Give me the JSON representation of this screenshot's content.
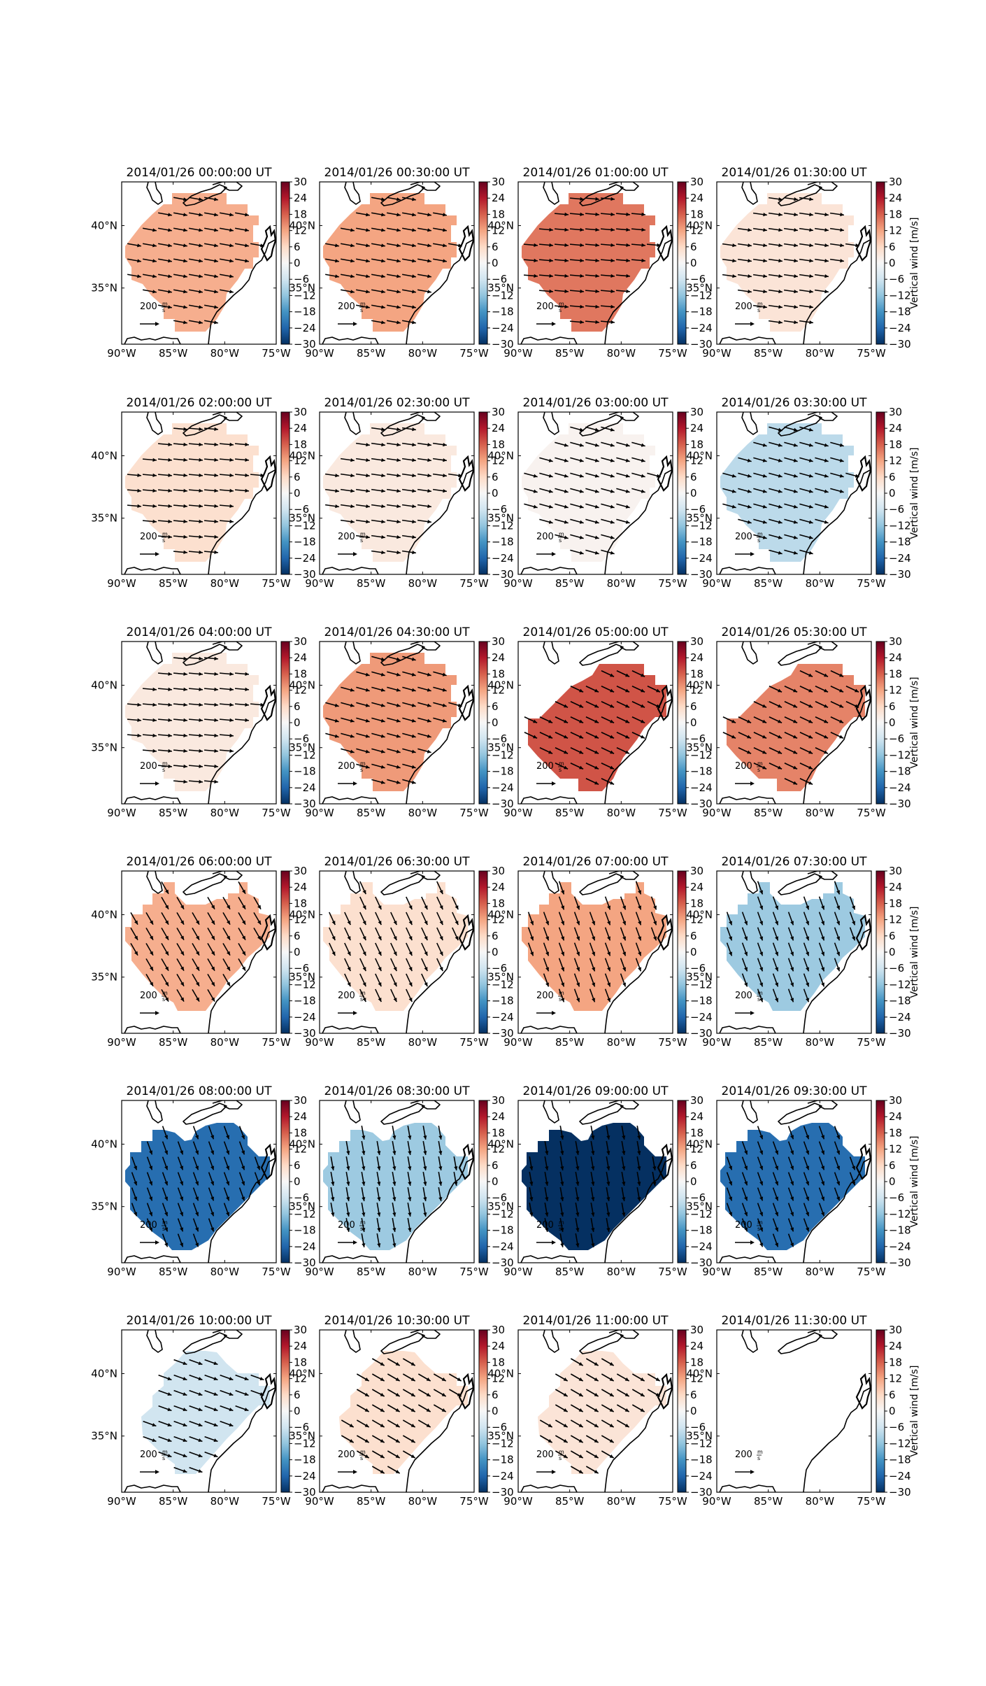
{
  "figure": {
    "arrow_scale_label": "200",
    "arrow_unit_num": "m",
    "arrow_unit_den": "s",
    "colorbar_label": "Vertical wind [m/s]"
  },
  "chart_data": {
    "type": "heatmap",
    "grid": {
      "rows": 6,
      "cols": 4
    },
    "colormap": "RdBu_r",
    "colors": {
      "-30": "#053061",
      "-24": "#2166ac",
      "-18": "#4393c3",
      "-12": "#92c5de",
      "-6": "#d1e5f0",
      "0": "#f7f7f7",
      "6": "#fddbc7",
      "12": "#f4a582",
      "18": "#d6604d",
      "24": "#b2182b",
      "30": "#67001f"
    },
    "colorbar": {
      "label": "Vertical wind [m/s]",
      "range": [
        -30,
        30
      ],
      "ticks": [
        30,
        24,
        18,
        12,
        6,
        0,
        -6,
        -12,
        -18,
        -24,
        -30
      ],
      "tick_labels": [
        "30",
        "24",
        "18",
        "12",
        "6",
        "0",
        "−6",
        "−12",
        "−18",
        "−24",
        "−30"
      ]
    },
    "x_ticks": [
      -90,
      -85,
      -80,
      -75
    ],
    "x_tick_labels": [
      "90°W",
      "85°W",
      "80°W",
      "75°W"
    ],
    "y_ticks": [
      40,
      35
    ],
    "y_tick_labels": [
      "40°N",
      "35°N"
    ],
    "xlim": [
      -90,
      -75
    ],
    "ylim": [
      30.5,
      43.5
    ],
    "quiver_key": {
      "value": 200,
      "unit": "m/s"
    },
    "panels": [
      {
        "title": "2014/01/26 00:00:00 UT",
        "value": 11,
        "wind_dir_deg": 10,
        "shape": "A"
      },
      {
        "title": "2014/01/26 00:30:00 UT",
        "value": 12,
        "wind_dir_deg": 10,
        "shape": "A"
      },
      {
        "title": "2014/01/26 01:00:00 UT",
        "value": 16,
        "wind_dir_deg": 5,
        "shape": "A"
      },
      {
        "title": "2014/01/26 01:30:00 UT",
        "value": 4,
        "wind_dir_deg": 8,
        "shape": "A"
      },
      {
        "title": "2014/01/26 02:00:00 UT",
        "value": 5,
        "wind_dir_deg": 5,
        "shape": "A"
      },
      {
        "title": "2014/01/26 02:30:00 UT",
        "value": 3,
        "wind_dir_deg": 8,
        "shape": "A"
      },
      {
        "title": "2014/01/26 03:00:00 UT",
        "value": 1,
        "wind_dir_deg": 15,
        "shape": "A"
      },
      {
        "title": "2014/01/26 03:30:00 UT",
        "value": -8,
        "wind_dir_deg": 15,
        "shape": "A"
      },
      {
        "title": "2014/01/26 04:00:00 UT",
        "value": 3,
        "wind_dir_deg": 5,
        "shape": "A"
      },
      {
        "title": "2014/01/26 04:30:00 UT",
        "value": 13,
        "wind_dir_deg": 15,
        "shape": "A"
      },
      {
        "title": "2014/01/26 05:00:00 UT",
        "value": 19,
        "wind_dir_deg": 25,
        "shape": "B"
      },
      {
        "title": "2014/01/26 05:30:00 UT",
        "value": 15,
        "wind_dir_deg": 25,
        "shape": "B"
      },
      {
        "title": "2014/01/26 06:00:00 UT",
        "value": 11,
        "wind_dir_deg": 60,
        "shape": "C"
      },
      {
        "title": "2014/01/26 06:30:00 UT",
        "value": 5,
        "wind_dir_deg": 65,
        "shape": "C"
      },
      {
        "title": "2014/01/26 07:00:00 UT",
        "value": 12,
        "wind_dir_deg": 70,
        "shape": "C"
      },
      {
        "title": "2014/01/26 07:30:00 UT",
        "value": -11,
        "wind_dir_deg": 70,
        "shape": "C"
      },
      {
        "title": "2014/01/26 08:00:00 UT",
        "value": -23,
        "wind_dir_deg": 70,
        "shape": "D"
      },
      {
        "title": "2014/01/26 08:30:00 UT",
        "value": -11,
        "wind_dir_deg": 80,
        "shape": "D"
      },
      {
        "title": "2014/01/26 09:00:00 UT",
        "value": -30,
        "wind_dir_deg": 80,
        "shape": "D"
      },
      {
        "title": "2014/01/26 09:30:00 UT",
        "value": -23,
        "wind_dir_deg": 70,
        "shape": "D"
      },
      {
        "title": "2014/01/26 10:00:00 UT",
        "value": -6,
        "wind_dir_deg": 20,
        "shape": "E"
      },
      {
        "title": "2014/01/26 10:30:00 UT",
        "value": 5,
        "wind_dir_deg": 30,
        "shape": "E"
      },
      {
        "title": "2014/01/26 11:00:00 UT",
        "value": 4,
        "wind_dir_deg": 30,
        "shape": "E"
      },
      {
        "title": "2014/01/26 11:30:00 UT",
        "value": null,
        "wind_dir_deg": null,
        "shape": "none"
      }
    ]
  }
}
